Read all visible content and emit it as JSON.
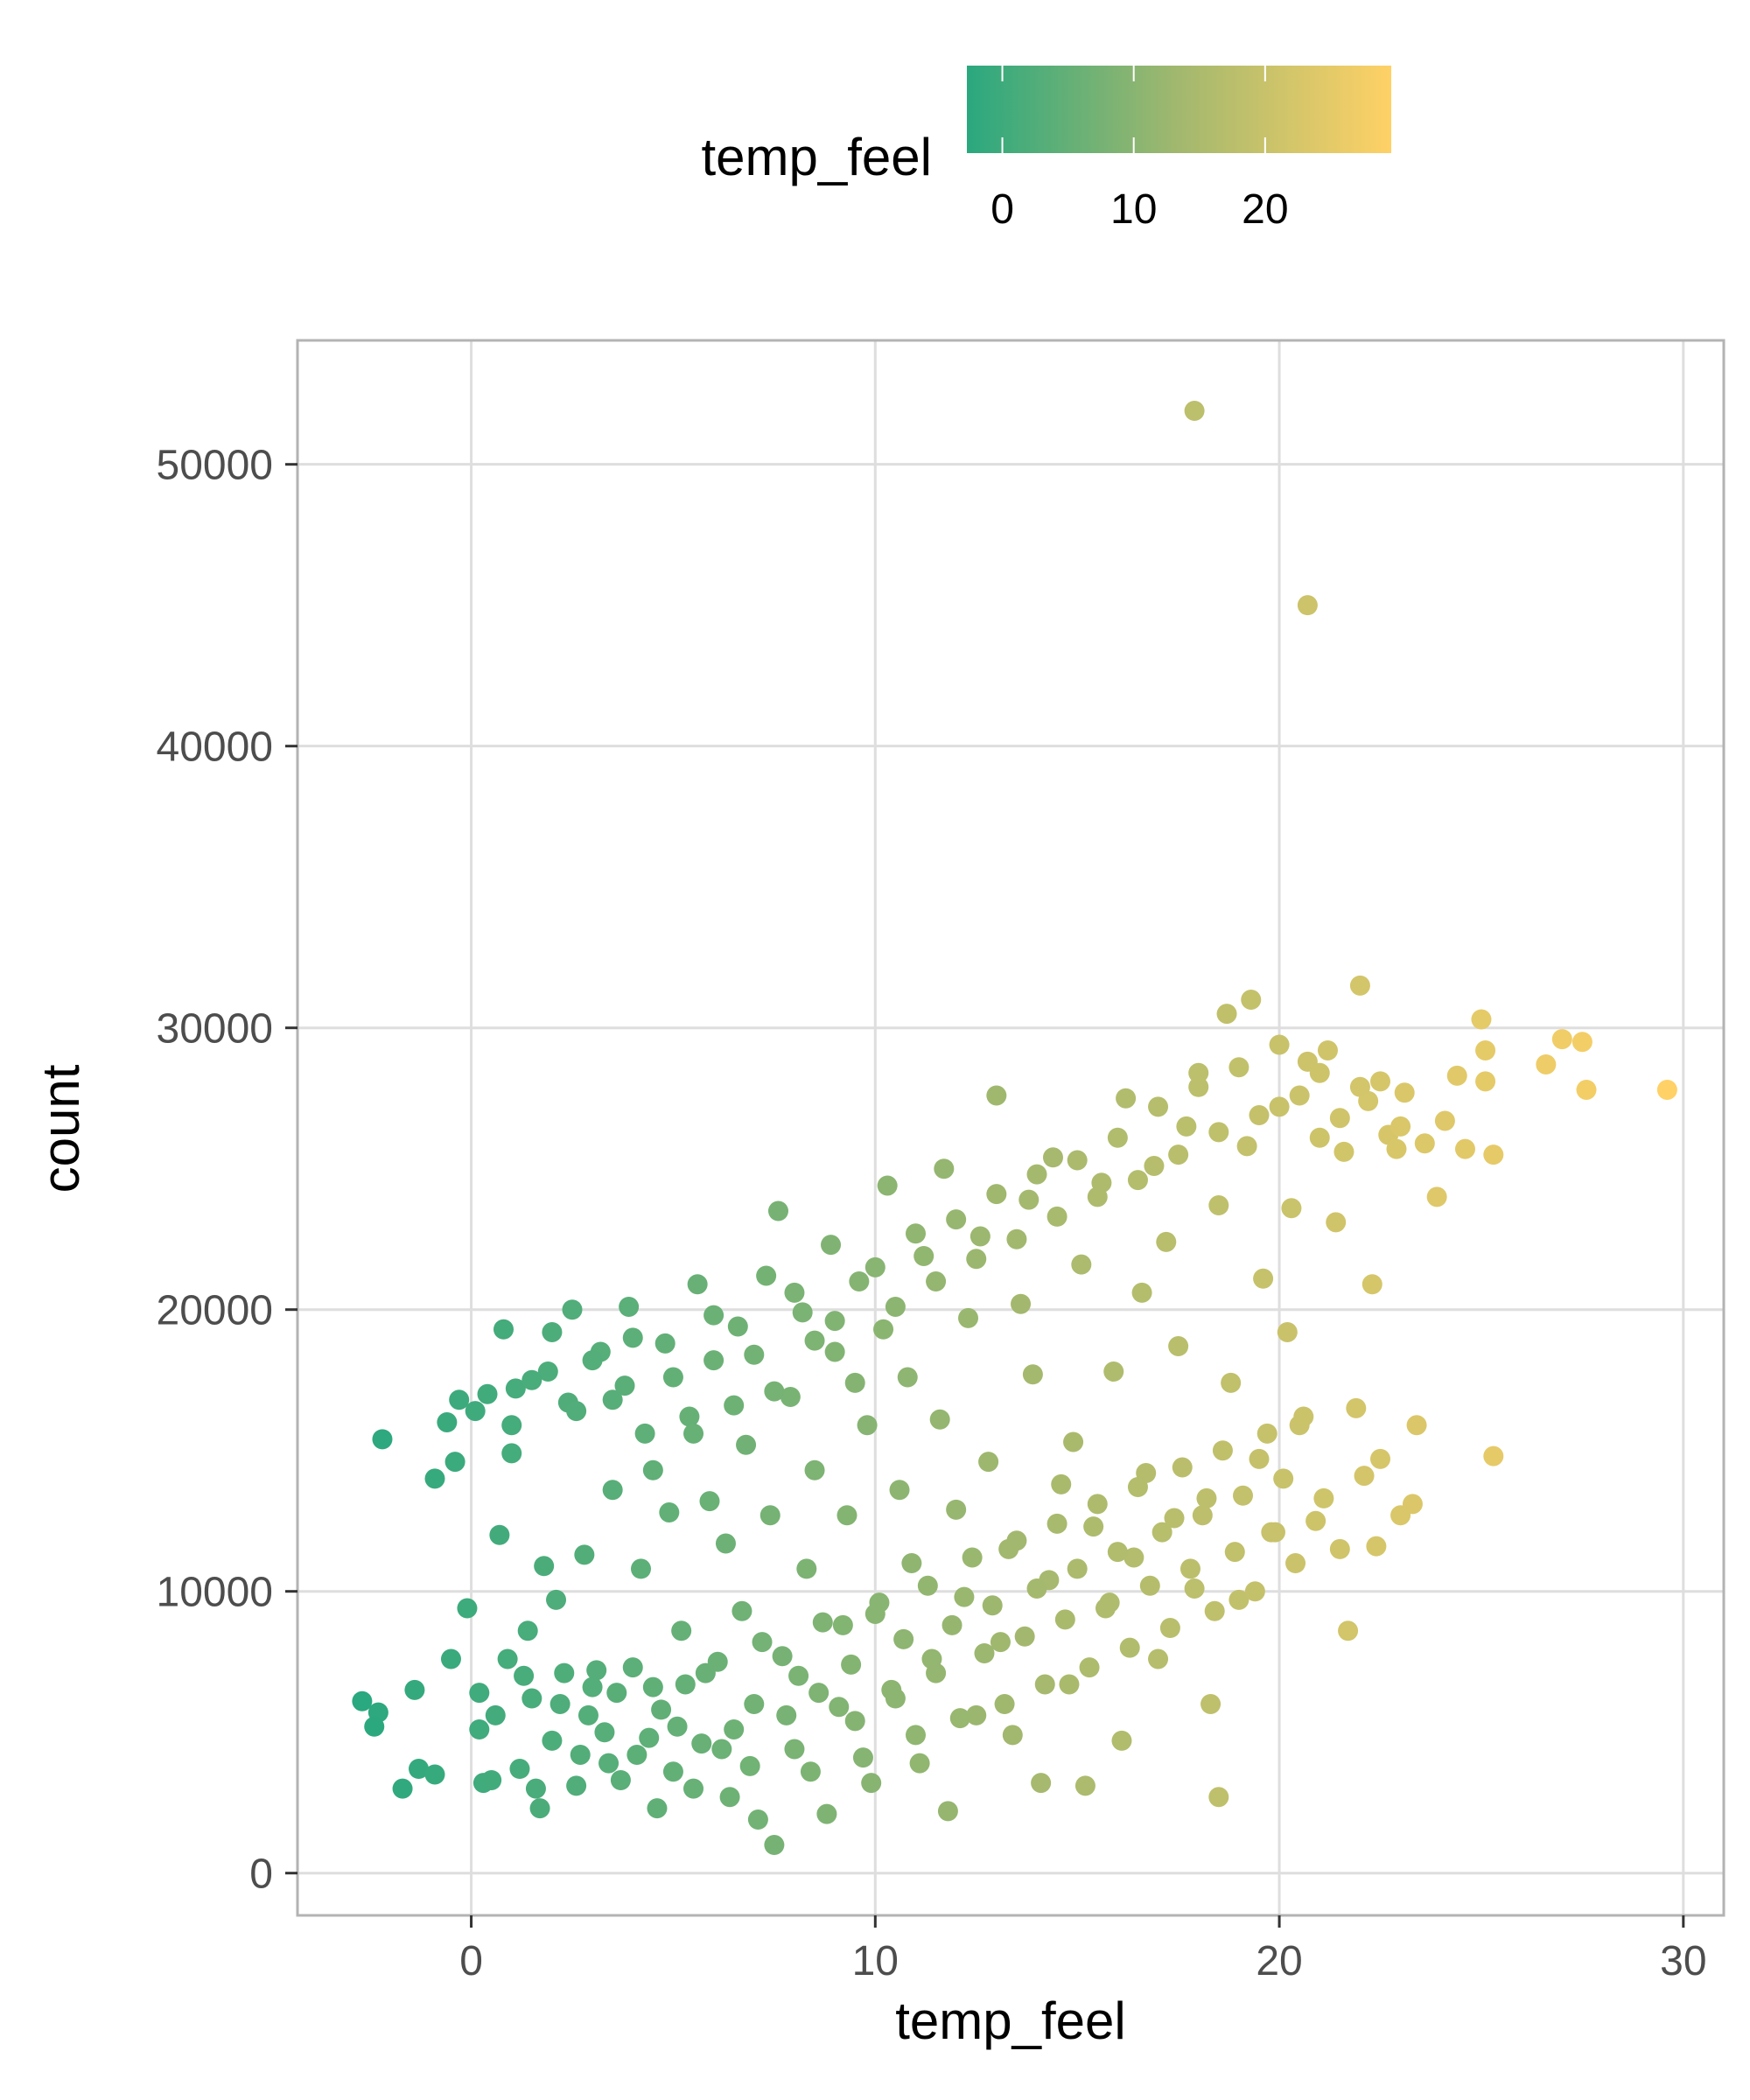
{
  "chart_data": {
    "type": "scatter",
    "title": "",
    "xlabel": "temp_feel",
    "ylabel": "count",
    "xlim": [
      -4.3,
      31.0
    ],
    "ylim": [
      -1500,
      54400
    ],
    "x_ticks": [
      0,
      10,
      20,
      30
    ],
    "y_ticks": [
      0,
      10000,
      20000,
      30000,
      40000,
      50000
    ],
    "x_tick_labels": [
      "0",
      "10",
      "20",
      "30"
    ],
    "y_tick_labels": [
      "0",
      "10000",
      "20000",
      "30000",
      "40000",
      "50000"
    ],
    "grid": true,
    "legend": {
      "title": "temp_feel",
      "placement": "top",
      "type": "colorbar",
      "range": [
        -2.7,
        29.6
      ],
      "ticks": [
        0,
        10,
        20
      ],
      "tick_labels": [
        "0",
        "10",
        "20"
      ],
      "color_low": "#2aa87f",
      "color_mid": "#a2b86e",
      "color_high": "#ffd166"
    },
    "marker_color_by": "x",
    "note_point_count": "approximately 1600 points; representative sample digitized",
    "points": [
      [
        17.9,
        51900
      ],
      [
        20.7,
        45000
      ],
      [
        -2.7,
        6100
      ],
      [
        -2.2,
        15400
      ],
      [
        -2.3,
        5700
      ],
      [
        -2.4,
        5200
      ],
      [
        -1.7,
        3000
      ],
      [
        -1.4,
        6500
      ],
      [
        -1.3,
        3700
      ],
      [
        -0.9,
        3500
      ],
      [
        -0.9,
        14000
      ],
      [
        -0.6,
        16000
      ],
      [
        -0.5,
        7600
      ],
      [
        -0.4,
        14600
      ],
      [
        -0.3,
        16800
      ],
      [
        -0.1,
        9400
      ],
      [
        0.1,
        16400
      ],
      [
        0.2,
        5100
      ],
      [
        0.3,
        3200
      ],
      [
        0.6,
        5600
      ],
      [
        0.7,
        12000
      ],
      [
        0.8,
        19300
      ],
      [
        0.9,
        7600
      ],
      [
        1.0,
        14900
      ],
      [
        1.1,
        17200
      ],
      [
        1.2,
        3700
      ],
      [
        1.4,
        8600
      ],
      [
        1.5,
        6200
      ],
      [
        1.7,
        2300
      ],
      [
        1.8,
        10900
      ],
      [
        1.9,
        17800
      ],
      [
        2.0,
        4700
      ],
      [
        2.1,
        9700
      ],
      [
        2.3,
        7100
      ],
      [
        2.4,
        16700
      ],
      [
        2.5,
        20000
      ],
      [
        2.6,
        3100
      ],
      [
        2.8,
        11300
      ],
      [
        2.9,
        5600
      ],
      [
        3.1,
        7200
      ],
      [
        3.2,
        18500
      ],
      [
        3.4,
        3900
      ],
      [
        3.5,
        13600
      ],
      [
        3.6,
        6400
      ],
      [
        3.8,
        17300
      ],
      [
        3.9,
        20100
      ],
      [
        4.1,
        4200
      ],
      [
        4.2,
        10800
      ],
      [
        4.3,
        15600
      ],
      [
        4.5,
        6600
      ],
      [
        4.6,
        2300
      ],
      [
        4.8,
        18800
      ],
      [
        4.9,
        12800
      ],
      [
        5.1,
        5200
      ],
      [
        5.2,
        8600
      ],
      [
        5.4,
        16200
      ],
      [
        5.5,
        3000
      ],
      [
        5.6,
        20900
      ],
      [
        5.8,
        7100
      ],
      [
        5.9,
        13200
      ],
      [
        6.0,
        18200
      ],
      [
        6.2,
        4400
      ],
      [
        6.3,
        11700
      ],
      [
        6.4,
        2700
      ],
      [
        6.6,
        19400
      ],
      [
        6.7,
        9300
      ],
      [
        6.8,
        15200
      ],
      [
        7.0,
        6000
      ],
      [
        7.1,
        1900
      ],
      [
        7.3,
        21200
      ],
      [
        7.4,
        12700
      ],
      [
        7.5,
        1000
      ],
      [
        7.6,
        23500
      ],
      [
        7.7,
        7700
      ],
      [
        7.9,
        16900
      ],
      [
        8.0,
        4400
      ],
      [
        8.2,
        19900
      ],
      [
        8.3,
        10800
      ],
      [
        8.5,
        14300
      ],
      [
        8.6,
        6400
      ],
      [
        8.8,
        2100
      ],
      [
        8.9,
        22300
      ],
      [
        9.0,
        18500
      ],
      [
        9.2,
        8800
      ],
      [
        9.3,
        12700
      ],
      [
        9.5,
        5400
      ],
      [
        9.6,
        21000
      ],
      [
        9.8,
        15900
      ],
      [
        9.9,
        3200
      ],
      [
        10.0,
        9200
      ],
      [
        10.2,
        19300
      ],
      [
        10.3,
        24400
      ],
      [
        10.5,
        6200
      ],
      [
        10.6,
        13600
      ],
      [
        10.8,
        17600
      ],
      [
        10.9,
        11000
      ],
      [
        11.1,
        3900
      ],
      [
        11.2,
        21900
      ],
      [
        11.4,
        7600
      ],
      [
        11.6,
        16100
      ],
      [
        11.7,
        25000
      ],
      [
        11.8,
        2200
      ],
      [
        12.0,
        12900
      ],
      [
        12.2,
        9800
      ],
      [
        12.3,
        19700
      ],
      [
        12.5,
        5600
      ],
      [
        12.6,
        22600
      ],
      [
        12.8,
        14600
      ],
      [
        13.0,
        27600
      ],
      [
        13.1,
        8200
      ],
      [
        13.3,
        11500
      ],
      [
        13.4,
        4900
      ],
      [
        13.6,
        20200
      ],
      [
        13.8,
        23900
      ],
      [
        13.9,
        17700
      ],
      [
        14.1,
        3200
      ],
      [
        14.3,
        10400
      ],
      [
        14.4,
        25400
      ],
      [
        14.6,
        13800
      ],
      [
        14.8,
        6700
      ],
      [
        14.9,
        15300
      ],
      [
        15.1,
        21600
      ],
      [
        15.2,
        3100
      ],
      [
        15.4,
        12300
      ],
      [
        15.6,
        24500
      ],
      [
        15.7,
        9400
      ],
      [
        15.9,
        17800
      ],
      [
        16.1,
        4700
      ],
      [
        16.2,
        27500
      ],
      [
        16.4,
        11200
      ],
      [
        16.6,
        20600
      ],
      [
        16.7,
        14200
      ],
      [
        16.9,
        25100
      ],
      [
        17.0,
        7600
      ],
      [
        17.2,
        22400
      ],
      [
        17.4,
        12600
      ],
      [
        17.5,
        18700
      ],
      [
        17.7,
        26500
      ],
      [
        17.9,
        10100
      ],
      [
        18.0,
        28400
      ],
      [
        18.2,
        13300
      ],
      [
        18.3,
        6000
      ],
      [
        18.5,
        23700
      ],
      [
        18.5,
        2700
      ],
      [
        18.7,
        30500
      ],
      [
        18.8,
        17400
      ],
      [
        19.0,
        9700
      ],
      [
        19.2,
        25800
      ],
      [
        19.3,
        31000
      ],
      [
        19.5,
        14700
      ],
      [
        19.6,
        21100
      ],
      [
        19.8,
        12100
      ],
      [
        20.0,
        27200
      ],
      [
        20.2,
        19200
      ],
      [
        20.3,
        23600
      ],
      [
        20.5,
        15900
      ],
      [
        20.7,
        28800
      ],
      [
        20.9,
        12500
      ],
      [
        21.0,
        26100
      ],
      [
        21.2,
        29200
      ],
      [
        21.4,
        23100
      ],
      [
        21.6,
        25600
      ],
      [
        21.7,
        8600
      ],
      [
        21.9,
        16500
      ],
      [
        22.0,
        31500
      ],
      [
        22.2,
        27400
      ],
      [
        22.3,
        20900
      ],
      [
        22.5,
        14700
      ],
      [
        22.7,
        26200
      ],
      [
        22.9,
        25700
      ],
      [
        23.1,
        27700
      ],
      [
        23.3,
        13100
      ],
      [
        23.4,
        15900
      ],
      [
        23.6,
        25900
      ],
      [
        23.9,
        24000
      ],
      [
        24.1,
        26700
      ],
      [
        24.4,
        28300
      ],
      [
        24.6,
        25700
      ],
      [
        25.0,
        30300
      ],
      [
        25.1,
        29200
      ],
      [
        25.3,
        25500
      ],
      [
        25.3,
        14800
      ],
      [
        25.1,
        28100
      ],
      [
        26.6,
        28700
      ],
      [
        27.0,
        29600
      ],
      [
        27.5,
        29500
      ],
      [
        27.6,
        27800
      ],
      [
        29.6,
        27800
      ],
      [
        0.2,
        6400
      ],
      [
        0.5,
        3300
      ],
      [
        1.3,
        7000
      ],
      [
        1.6,
        3000
      ],
      [
        2.2,
        6000
      ],
      [
        2.7,
        4200
      ],
      [
        3.0,
        6600
      ],
      [
        3.3,
        5000
      ],
      [
        3.7,
        3300
      ],
      [
        4.0,
        7300
      ],
      [
        4.4,
        4800
      ],
      [
        4.7,
        5800
      ],
      [
        5.0,
        3600
      ],
      [
        5.3,
        6700
      ],
      [
        5.7,
        4600
      ],
      [
        6.1,
        7500
      ],
      [
        6.5,
        5100
      ],
      [
        6.9,
        3800
      ],
      [
        7.2,
        8200
      ],
      [
        7.8,
        5600
      ],
      [
        8.1,
        7000
      ],
      [
        8.4,
        3600
      ],
      [
        8.7,
        8900
      ],
      [
        9.1,
        5900
      ],
      [
        9.4,
        7400
      ],
      [
        9.7,
        4100
      ],
      [
        10.1,
        9600
      ],
      [
        10.4,
        6500
      ],
      [
        10.7,
        8300
      ],
      [
        11.0,
        4900
      ],
      [
        11.3,
        10200
      ],
      [
        11.5,
        7100
      ],
      [
        11.9,
        8800
      ],
      [
        12.1,
        5500
      ],
      [
        12.4,
        11200
      ],
      [
        12.7,
        7800
      ],
      [
        12.9,
        9500
      ],
      [
        13.2,
        6000
      ],
      [
        13.5,
        11800
      ],
      [
        13.7,
        8400
      ],
      [
        14.0,
        10100
      ],
      [
        14.2,
        6700
      ],
      [
        14.5,
        12400
      ],
      [
        14.7,
        9000
      ],
      [
        15.0,
        10800
      ],
      [
        15.3,
        7300
      ],
      [
        15.5,
        13100
      ],
      [
        15.8,
        9600
      ],
      [
        16.0,
        11400
      ],
      [
        16.3,
        8000
      ],
      [
        16.5,
        13700
      ],
      [
        16.8,
        10200
      ],
      [
        17.1,
        12100
      ],
      [
        17.3,
        8700
      ],
      [
        17.6,
        14400
      ],
      [
        17.8,
        10800
      ],
      [
        18.1,
        12700
      ],
      [
        18.4,
        9300
      ],
      [
        18.6,
        15000
      ],
      [
        18.9,
        11400
      ],
      [
        19.1,
        13400
      ],
      [
        19.4,
        10000
      ],
      [
        19.7,
        15600
      ],
      [
        19.9,
        12100
      ],
      [
        20.1,
        14000
      ],
      [
        20.4,
        11000
      ],
      [
        20.6,
        16200
      ],
      [
        21.1,
        13300
      ],
      [
        21.5,
        11500
      ],
      [
        22.1,
        14100
      ],
      [
        22.4,
        11600
      ],
      [
        23.0,
        12700
      ],
      [
        0.4,
        17000
      ],
      [
        1.0,
        15900
      ],
      [
        1.5,
        17500
      ],
      [
        2.0,
        19200
      ],
      [
        2.6,
        16400
      ],
      [
        3.0,
        18200
      ],
      [
        3.5,
        16800
      ],
      [
        4.0,
        19000
      ],
      [
        4.5,
        14300
      ],
      [
        5.0,
        17600
      ],
      [
        5.5,
        15600
      ],
      [
        6.0,
        19800
      ],
      [
        6.5,
        16600
      ],
      [
        7.0,
        18400
      ],
      [
        7.5,
        17100
      ],
      [
        8.0,
        20600
      ],
      [
        8.5,
        18900
      ],
      [
        9.0,
        19600
      ],
      [
        9.5,
        17400
      ],
      [
        10.0,
        21500
      ],
      [
        10.5,
        20100
      ],
      [
        11.0,
        22700
      ],
      [
        11.5,
        21000
      ],
      [
        12.0,
        23200
      ],
      [
        12.5,
        21800
      ],
      [
        13.0,
        24100
      ],
      [
        13.5,
        22500
      ],
      [
        14.0,
        24800
      ],
      [
        14.5,
        23300
      ],
      [
        15.0,
        25300
      ],
      [
        15.5,
        24000
      ],
      [
        16.0,
        26100
      ],
      [
        16.5,
        24600
      ],
      [
        17.0,
        27200
      ],
      [
        17.5,
        25500
      ],
      [
        18.0,
        27900
      ],
      [
        18.5,
        26300
      ],
      [
        19.0,
        28600
      ],
      [
        19.5,
        26900
      ],
      [
        20.0,
        29400
      ],
      [
        20.5,
        27600
      ],
      [
        21.0,
        28400
      ],
      [
        21.5,
        26800
      ],
      [
        22.0,
        27900
      ],
      [
        22.5,
        28100
      ],
      [
        23.0,
        26500
      ]
    ]
  }
}
